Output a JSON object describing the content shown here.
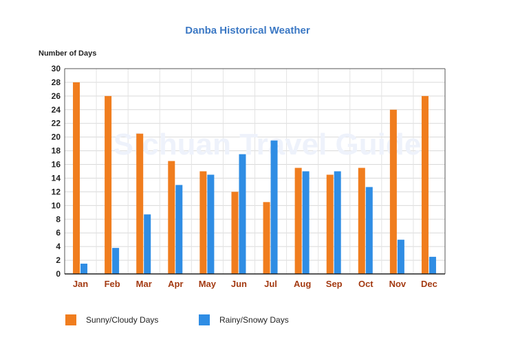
{
  "chart_data": {
    "type": "bar",
    "title": "Danba Historical Weather",
    "ylabel": "Number of Days",
    "xlabel": "",
    "ylim": [
      0,
      30
    ],
    "yticks": [
      0,
      2,
      4,
      6,
      8,
      10,
      12,
      14,
      16,
      18,
      20,
      22,
      24,
      26,
      28,
      30
    ],
    "grid": true,
    "legend_position": "bottom",
    "watermark": "Sichuan Travel Guide",
    "categories": [
      "Jan",
      "Feb",
      "Mar",
      "Apr",
      "May",
      "Jun",
      "Jul",
      "Aug",
      "Sep",
      "Oct",
      "Nov",
      "Dec"
    ],
    "series": [
      {
        "name": "Sunny/Cloudy Days",
        "color": "#f07d1e",
        "values": [
          28,
          26,
          20.5,
          16.5,
          15,
          12,
          10.5,
          15.5,
          14.5,
          15.5,
          24,
          26
        ]
      },
      {
        "name": "Rainy/Snowy Days",
        "color": "#2f8de4",
        "values": [
          1.5,
          3.8,
          8.7,
          13,
          14.5,
          17.5,
          19.5,
          15,
          15,
          12.7,
          5,
          2.5
        ]
      }
    ]
  }
}
